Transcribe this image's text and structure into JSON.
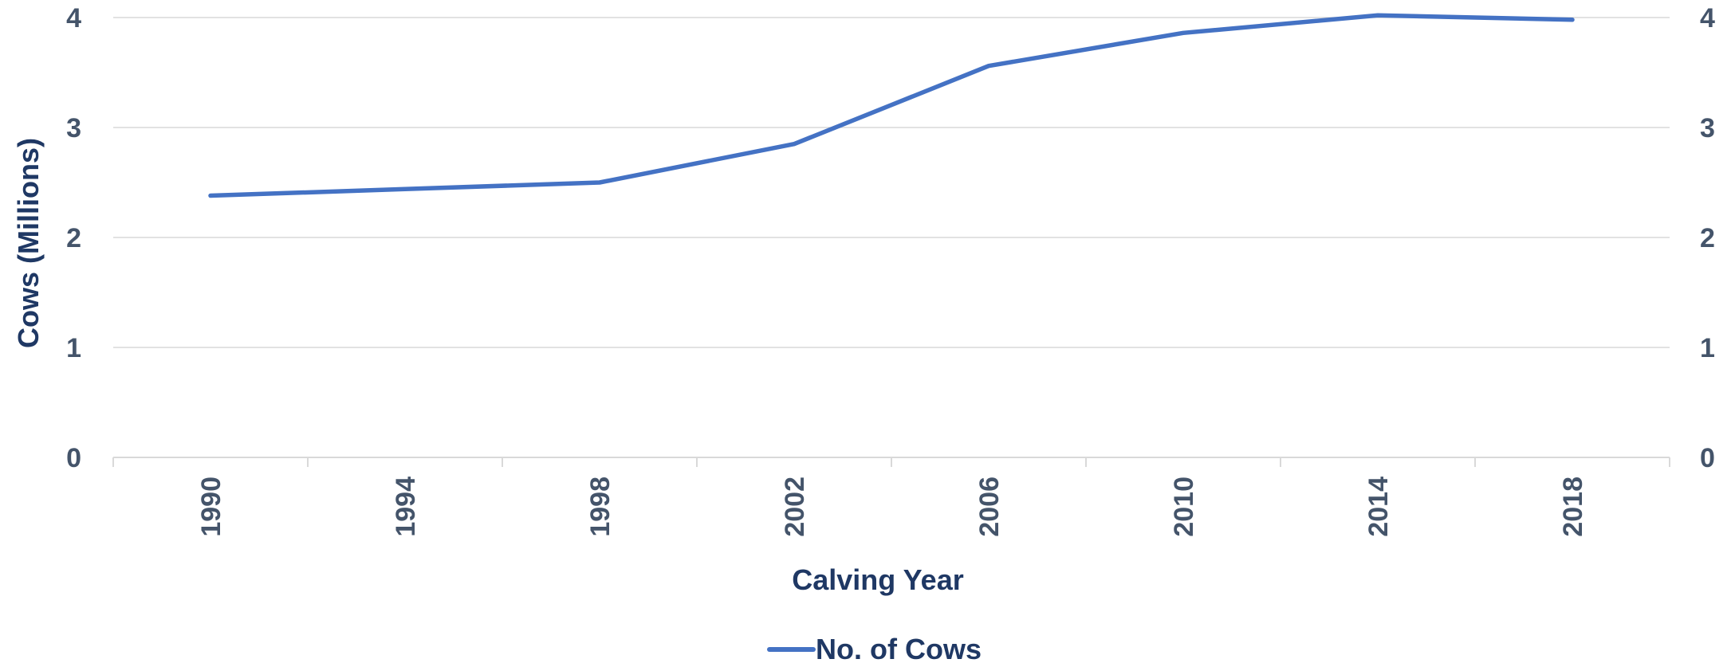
{
  "chart_data": {
    "type": "line",
    "title": "",
    "xlabel": "Calving Year",
    "ylabel": "Cows  (Millions)",
    "categories": [
      "1990",
      "1994",
      "1998",
      "2002",
      "2006",
      "2010",
      "2014",
      "2018"
    ],
    "series": [
      {
        "name": "No. of Cows",
        "color": "#4472c4",
        "values": [
          2.38,
          2.44,
          2.5,
          2.85,
          3.56,
          3.86,
          4.02,
          3.98
        ]
      }
    ],
    "ylim": [
      0,
      4
    ],
    "yticks": [
      0,
      1,
      2,
      3,
      4
    ],
    "secondary_yticks": [
      0,
      1,
      2,
      3,
      4
    ],
    "grid": true,
    "legend_position": "bottom-center",
    "colors": {
      "grid": "#d9d9d9",
      "tick_text": "#44546a",
      "title_text": "#1f3864"
    }
  }
}
